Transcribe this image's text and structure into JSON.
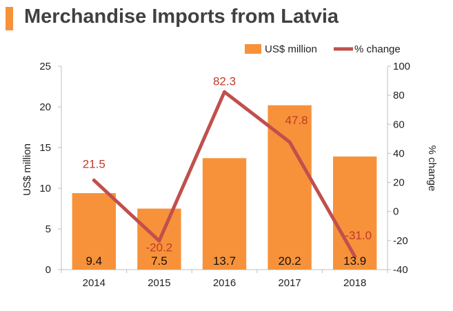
{
  "header": {
    "title": "Merchandise Imports from Latvia"
  },
  "colors": {
    "bar": "#f7923a",
    "line": "#c0504d",
    "line_label": "#c0392b",
    "accent": "#f7923a",
    "axis": "#bfbfbf"
  },
  "chart_data": {
    "type": "bar",
    "title": "Merchandise Imports from Latvia",
    "categories": [
      "2014",
      "2015",
      "2016",
      "2017",
      "2018"
    ],
    "series": [
      {
        "name": "US$ million",
        "type": "bar",
        "axis": "left",
        "values": [
          9.4,
          7.5,
          13.7,
          20.2,
          13.9
        ],
        "labels": [
          "9.4",
          "7.5",
          "13.7",
          "20.2",
          "13.9"
        ]
      },
      {
        "name": "% change",
        "type": "line",
        "axis": "right",
        "values": [
          21.5,
          -20.2,
          82.3,
          47.8,
          -31.0
        ],
        "labels": [
          "21.5",
          "-20.2",
          "82.3",
          "47.8",
          "-31.0"
        ]
      }
    ],
    "ylabel": "US$ million",
    "ylim": [
      0,
      25
    ],
    "yticks": [
      "0",
      "5",
      "10",
      "15",
      "20",
      "25"
    ],
    "y2label": "% change",
    "y2lim": [
      -40,
      100
    ],
    "y2ticks": [
      "-40",
      "-20",
      "0",
      "20",
      "40",
      "60",
      "80",
      "100"
    ],
    "legend": {
      "position": "top-right",
      "bar_label": "US$ million",
      "line_label": "% change"
    }
  }
}
